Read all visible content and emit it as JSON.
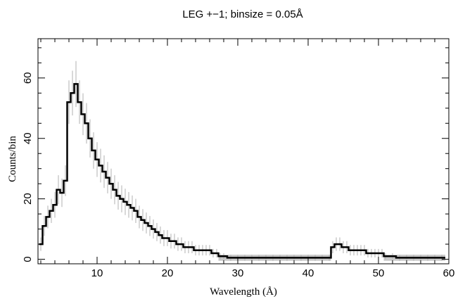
{
  "chart_data": {
    "type": "line",
    "title": "LEG +−1; binsize = 0.05Å",
    "xlabel": "Wavelength (Å)",
    "ylabel": "Counts/bin",
    "xlim": [
      1.6,
      60
    ],
    "ylim": [
      -1.5,
      73
    ],
    "x_ticks": [
      10,
      20,
      30,
      40,
      50,
      60
    ],
    "y_ticks": [
      0,
      20,
      40,
      60
    ],
    "x_tick_labels": [
      "10",
      "20",
      "30",
      "40",
      "50",
      "60"
    ],
    "y_tick_labels": [
      "0",
      "20",
      "40",
      "60"
    ],
    "grid": false,
    "legend": "none",
    "series": [
      {
        "style": "histogram-step",
        "color": "#000000",
        "errorbar_color": "#b0b0b0",
        "background_band_color": "#c8c8c8",
        "x": [
          2,
          2.5,
          3,
          3.5,
          4,
          4.5,
          5,
          5.5,
          6,
          6.5,
          7,
          7.5,
          8,
          8.5,
          9,
          9.5,
          10,
          10.5,
          11,
          11.5,
          12,
          12.5,
          13,
          13.5,
          14,
          14.5,
          15,
          15.5,
          16,
          16.5,
          17,
          17.5,
          18,
          18.5,
          19,
          19.5,
          20,
          20.5,
          21,
          21.5,
          22,
          22.5,
          23,
          23.5,
          24,
          24.5,
          25,
          25.5,
          26,
          26.5,
          27,
          27.5,
          28,
          29,
          30,
          31,
          32,
          33,
          34,
          35,
          36,
          37,
          38,
          39,
          40,
          41,
          42,
          43,
          43.5,
          44,
          44.5,
          45,
          45.5,
          46,
          46.5,
          47,
          47.5,
          48,
          48.5,
          49,
          49.5,
          50,
          50.5,
          51,
          52,
          53,
          54,
          55,
          56,
          57,
          58,
          59
        ],
        "values": [
          5,
          11,
          14,
          16,
          18,
          23,
          22,
          26,
          52,
          55,
          58,
          52,
          48,
          45,
          40,
          36,
          33,
          31,
          29,
          27,
          25,
          23,
          21,
          20,
          19,
          18,
          17,
          16,
          14,
          13,
          12,
          11,
          10,
          9,
          8,
          7,
          7,
          6,
          6,
          5,
          5,
          4,
          4,
          4,
          3,
          3,
          3,
          3,
          3,
          2,
          2,
          1,
          1,
          0.5,
          0.5,
          0.5,
          0.5,
          0.5,
          0.5,
          0.5,
          0.5,
          0.5,
          0.5,
          0.5,
          0.5,
          0.5,
          0.5,
          0.5,
          4,
          5,
          5,
          4,
          4,
          3,
          3,
          3,
          3,
          3,
          2,
          2,
          2,
          2,
          2,
          1,
          1,
          0.5,
          0.5,
          0.5,
          0.5,
          0.5,
          0.5,
          0.5
        ]
      }
    ]
  }
}
